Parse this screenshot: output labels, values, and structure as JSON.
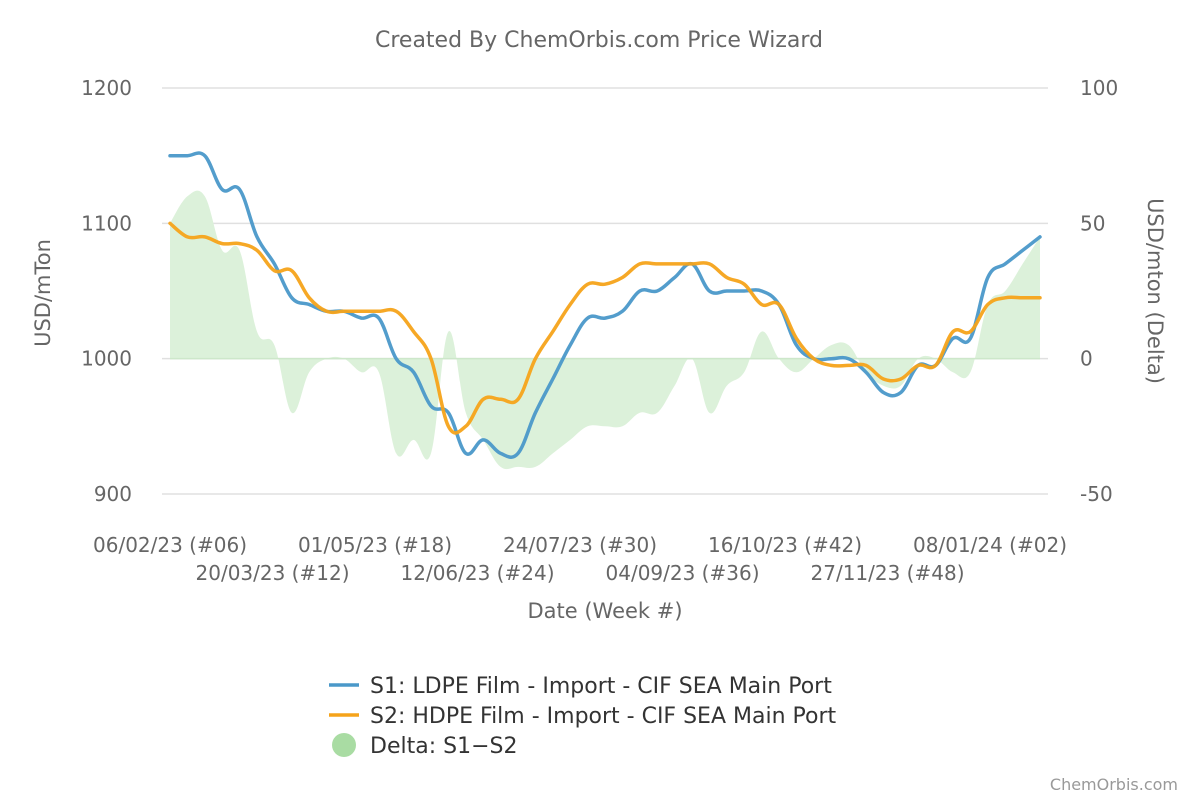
{
  "chart_data": {
    "type": "line",
    "title": "Created By ChemOrbis.com Price Wizard",
    "xlabel": "Date (Week #)",
    "ylabel": "USD/mTon",
    "y2label": "USD/mton (Delta)",
    "ylim": [
      900,
      1200
    ],
    "yticks": [
      900,
      1000,
      1100,
      1200
    ],
    "y2lim": [
      -50,
      100
    ],
    "y2ticks": [
      -50,
      0,
      50,
      100
    ],
    "grid": true,
    "legend_position": "bottom",
    "x_tick_labels": [
      "06/02/23 (#06)",
      "20/03/23 (#12)",
      "01/05/23 (#18)",
      "12/06/23 (#24)",
      "24/07/23 (#30)",
      "04/09/23 (#36)",
      "16/10/23 (#42)",
      "27/11/23 (#48)",
      "08/01/24 (#02)"
    ],
    "x": [
      "06/02/23",
      "13/02/23",
      "20/02/23",
      "27/02/23",
      "06/03/23",
      "13/03/23",
      "20/03/23",
      "27/03/23",
      "03/04/23",
      "10/04/23",
      "17/04/23",
      "24/04/23",
      "01/05/23",
      "08/05/23",
      "15/05/23",
      "22/05/23",
      "29/05/23",
      "05/06/23",
      "12/06/23",
      "19/06/23",
      "26/06/23",
      "03/07/23",
      "10/07/23",
      "17/07/23",
      "24/07/23",
      "31/07/23",
      "07/08/23",
      "14/08/23",
      "21/08/23",
      "28/08/23",
      "04/09/23",
      "11/09/23",
      "18/09/23",
      "25/09/23",
      "02/10/23",
      "09/10/23",
      "16/10/23",
      "23/10/23",
      "30/10/23",
      "06/11/23",
      "13/11/23",
      "20/11/23",
      "27/11/23",
      "04/12/23",
      "11/12/23",
      "18/12/23",
      "25/12/23",
      "01/01/24",
      "08/01/24",
      "15/01/24",
      "22/01/24"
    ],
    "series": [
      {
        "name": "S1: LDPE Film - Import - CIF SEA Main Port",
        "color": "#4a98c9",
        "values": [
          1150,
          1150,
          1150,
          1125,
          1125,
          1090,
          1070,
          1045,
          1040,
          1035,
          1035,
          1030,
          1030,
          1000,
          990,
          965,
          960,
          930,
          940,
          930,
          930,
          960,
          985,
          1010,
          1030,
          1030,
          1035,
          1050,
          1050,
          1060,
          1070,
          1050,
          1050,
          1050,
          1050,
          1040,
          1010,
          1000,
          1000,
          1000,
          990,
          975,
          975,
          995,
          995,
          1015,
          1015,
          1060,
          1070,
          1080,
          1090
        ]
      },
      {
        "name": "S2: HDPE Film - Import - CIF SEA Main Port",
        "color": "#f5a31a",
        "values": [
          1100,
          1090,
          1090,
          1085,
          1085,
          1080,
          1065,
          1065,
          1045,
          1035,
          1035,
          1035,
          1035,
          1035,
          1020,
          1000,
          950,
          950,
          970,
          970,
          970,
          1000,
          1020,
          1040,
          1055,
          1055,
          1060,
          1070,
          1070,
          1070,
          1070,
          1070,
          1060,
          1055,
          1040,
          1040,
          1015,
          1000,
          995,
          995,
          995,
          985,
          985,
          995,
          995,
          1020,
          1020,
          1040,
          1045,
          1045,
          1045
        ]
      },
      {
        "name": "Delta: S1−S2",
        "color": "#a9dca3",
        "type": "area",
        "values": [
          50,
          60,
          60,
          40,
          40,
          10,
          5,
          -20,
          -5,
          0,
          0,
          -5,
          -5,
          -35,
          -30,
          -35,
          10,
          -20,
          -30,
          -40,
          -40,
          -40,
          -35,
          -30,
          -25,
          -25,
          -25,
          -20,
          -20,
          -10,
          0,
          -20,
          -10,
          -5,
          10,
          0,
          -5,
          0,
          5,
          5,
          -5,
          -10,
          -10,
          0,
          0,
          -5,
          -5,
          20,
          25,
          35,
          45
        ]
      }
    ]
  },
  "credit": "ChemOrbis.com"
}
